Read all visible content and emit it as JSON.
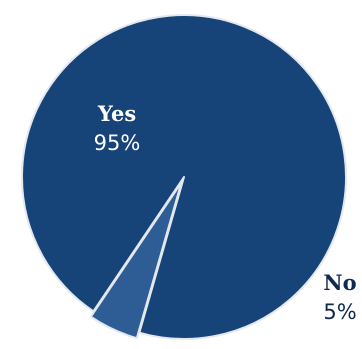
{
  "chart_data": {
    "type": "pie",
    "slices": [
      {
        "label": "Yes",
        "percent_label": "95%",
        "value": 95,
        "color": "#164378",
        "label_color": "#ffffff"
      },
      {
        "label": "No",
        "percent_label": "5%",
        "value": 5,
        "color": "#2d5d94",
        "label_color": "#0f2a4f"
      }
    ],
    "slice_border_color": "#e3e8ef",
    "title": "",
    "legend": "none"
  }
}
